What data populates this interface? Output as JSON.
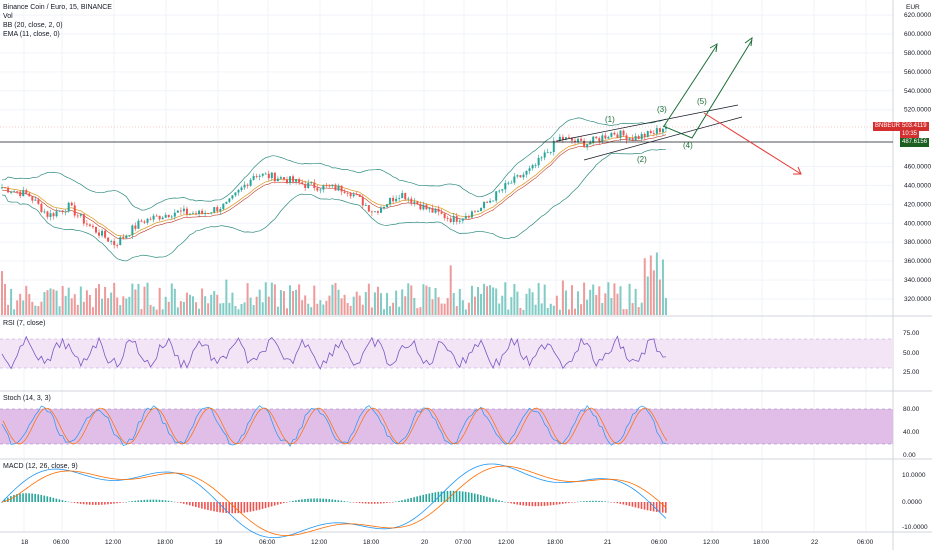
{
  "header": {
    "symbol_line": "Binance Coin / Euro, 15, BINANCE",
    "vol_label": "Vol",
    "bb_label": "BB (20, close, 2, 0)",
    "ema_label": "EMA (11, close, 0)"
  },
  "price_axis": {
    "currency": "EUR",
    "ticks": [
      "620.0000",
      "600.0000",
      "580.0000",
      "560.0000",
      "540.0000",
      "520.0000",
      "460.0000",
      "440.0000",
      "420.0000",
      "400.0000",
      "380.0000",
      "360.0000",
      "340.0000",
      "320.0000"
    ],
    "current_symbol": "BNBEUR",
    "current_price": "503.4119",
    "countdown": "10:35",
    "hline_price": "487.6156"
  },
  "rsi": {
    "label": "RSI (7, close)",
    "ticks": [
      "75.00",
      "50.00",
      "25.00"
    ]
  },
  "stoch": {
    "label": "Stoch (14, 3, 3)",
    "ticks": [
      "80.00",
      "40.00",
      "0.00"
    ]
  },
  "macd": {
    "label": "MACD (12, 26, close, 9)",
    "ticks": [
      "10.0000",
      "0.0000",
      "-10.0000"
    ]
  },
  "time_axis": {
    "ticks": [
      "18",
      "06:00",
      "12:00",
      "18:00",
      "19",
      "06:00",
      "12:00",
      "18:00",
      "20",
      "07:00",
      "12:00",
      "18:00",
      "21",
      "06:00",
      "12:00",
      "18:00",
      "22",
      "06:00"
    ]
  },
  "annotations": {
    "waves": [
      "(1)",
      "(2)",
      "(3)",
      "(4)",
      "(5)"
    ]
  },
  "colors": {
    "up": "#26a69a",
    "down": "#ef5350",
    "bb": "#2e8b7f",
    "ema": "#e0a030",
    "projection": "#1b6e36",
    "bearish": "#e53935",
    "rsi_line": "#7e57c2",
    "rsi_band": "#f3e5f5",
    "stoch_band": "#e1bee7",
    "macd_line": "#2196f3",
    "signal_line": "#ff6d00",
    "price_tag": "#d32f2f",
    "hline_tag": "#1b5e20"
  },
  "chart_data": {
    "type": "line",
    "ylim": [
      310,
      630
    ],
    "price_series": [
      {
        "x": 0,
        "y": 438
      },
      {
        "x": 0.04,
        "y": 430
      },
      {
        "x": 0.07,
        "y": 408
      },
      {
        "x": 0.1,
        "y": 418
      },
      {
        "x": 0.13,
        "y": 398
      },
      {
        "x": 0.17,
        "y": 378
      },
      {
        "x": 0.21,
        "y": 402
      },
      {
        "x": 0.26,
        "y": 412
      },
      {
        "x": 0.3,
        "y": 410
      },
      {
        "x": 0.34,
        "y": 420
      },
      {
        "x": 0.38,
        "y": 452
      },
      {
        "x": 0.42,
        "y": 448
      },
      {
        "x": 0.46,
        "y": 440
      },
      {
        "x": 0.52,
        "y": 436
      },
      {
        "x": 0.56,
        "y": 412
      },
      {
        "x": 0.6,
        "y": 432
      },
      {
        "x": 0.64,
        "y": 415
      },
      {
        "x": 0.68,
        "y": 404
      },
      {
        "x": 0.72,
        "y": 415
      },
      {
        "x": 0.76,
        "y": 440
      },
      {
        "x": 0.8,
        "y": 458
      },
      {
        "x": 0.84,
        "y": 490
      },
      {
        "x": 0.88,
        "y": 484
      },
      {
        "x": 0.92,
        "y": 496
      },
      {
        "x": 0.95,
        "y": 490
      },
      {
        "x": 0.98,
        "y": 495
      },
      {
        "x": 1.0,
        "y": 503
      }
    ]
  }
}
